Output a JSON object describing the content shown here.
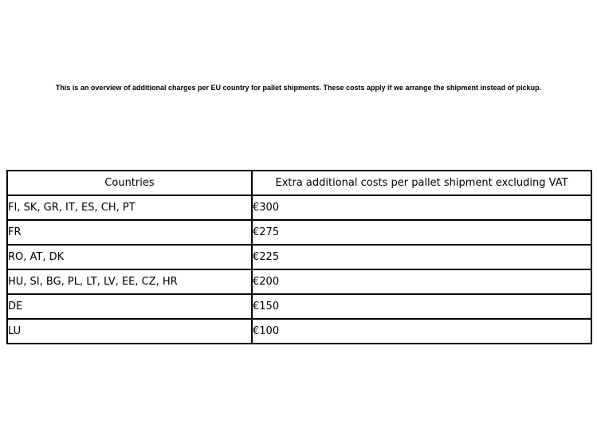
{
  "intro": {
    "text": "This is an overview of additional charges per EU country for pallet shipments. These costs apply if we arrange the shipment instead of pickup."
  },
  "table": {
    "headers": [
      "Countries",
      "Extra additional costs per pallet shipment excluding VAT"
    ],
    "rows": [
      {
        "countries": "FI, SK, GR, IT, ES, CH, PT",
        "cost": "€300"
      },
      {
        "countries": "FR",
        "cost": "€275"
      },
      {
        "countries": "RO, AT, DK",
        "cost": "€225"
      },
      {
        "countries": "HU, SI, BG, PL, LT, LV, EE, CZ, HR",
        "cost": "€200"
      },
      {
        "countries": "DE",
        "cost": "€150"
      },
      {
        "countries": "LU",
        "cost": "€100"
      }
    ]
  },
  "colors": {
    "background": "#ffffff",
    "text": "#000000",
    "border": "#000000"
  }
}
